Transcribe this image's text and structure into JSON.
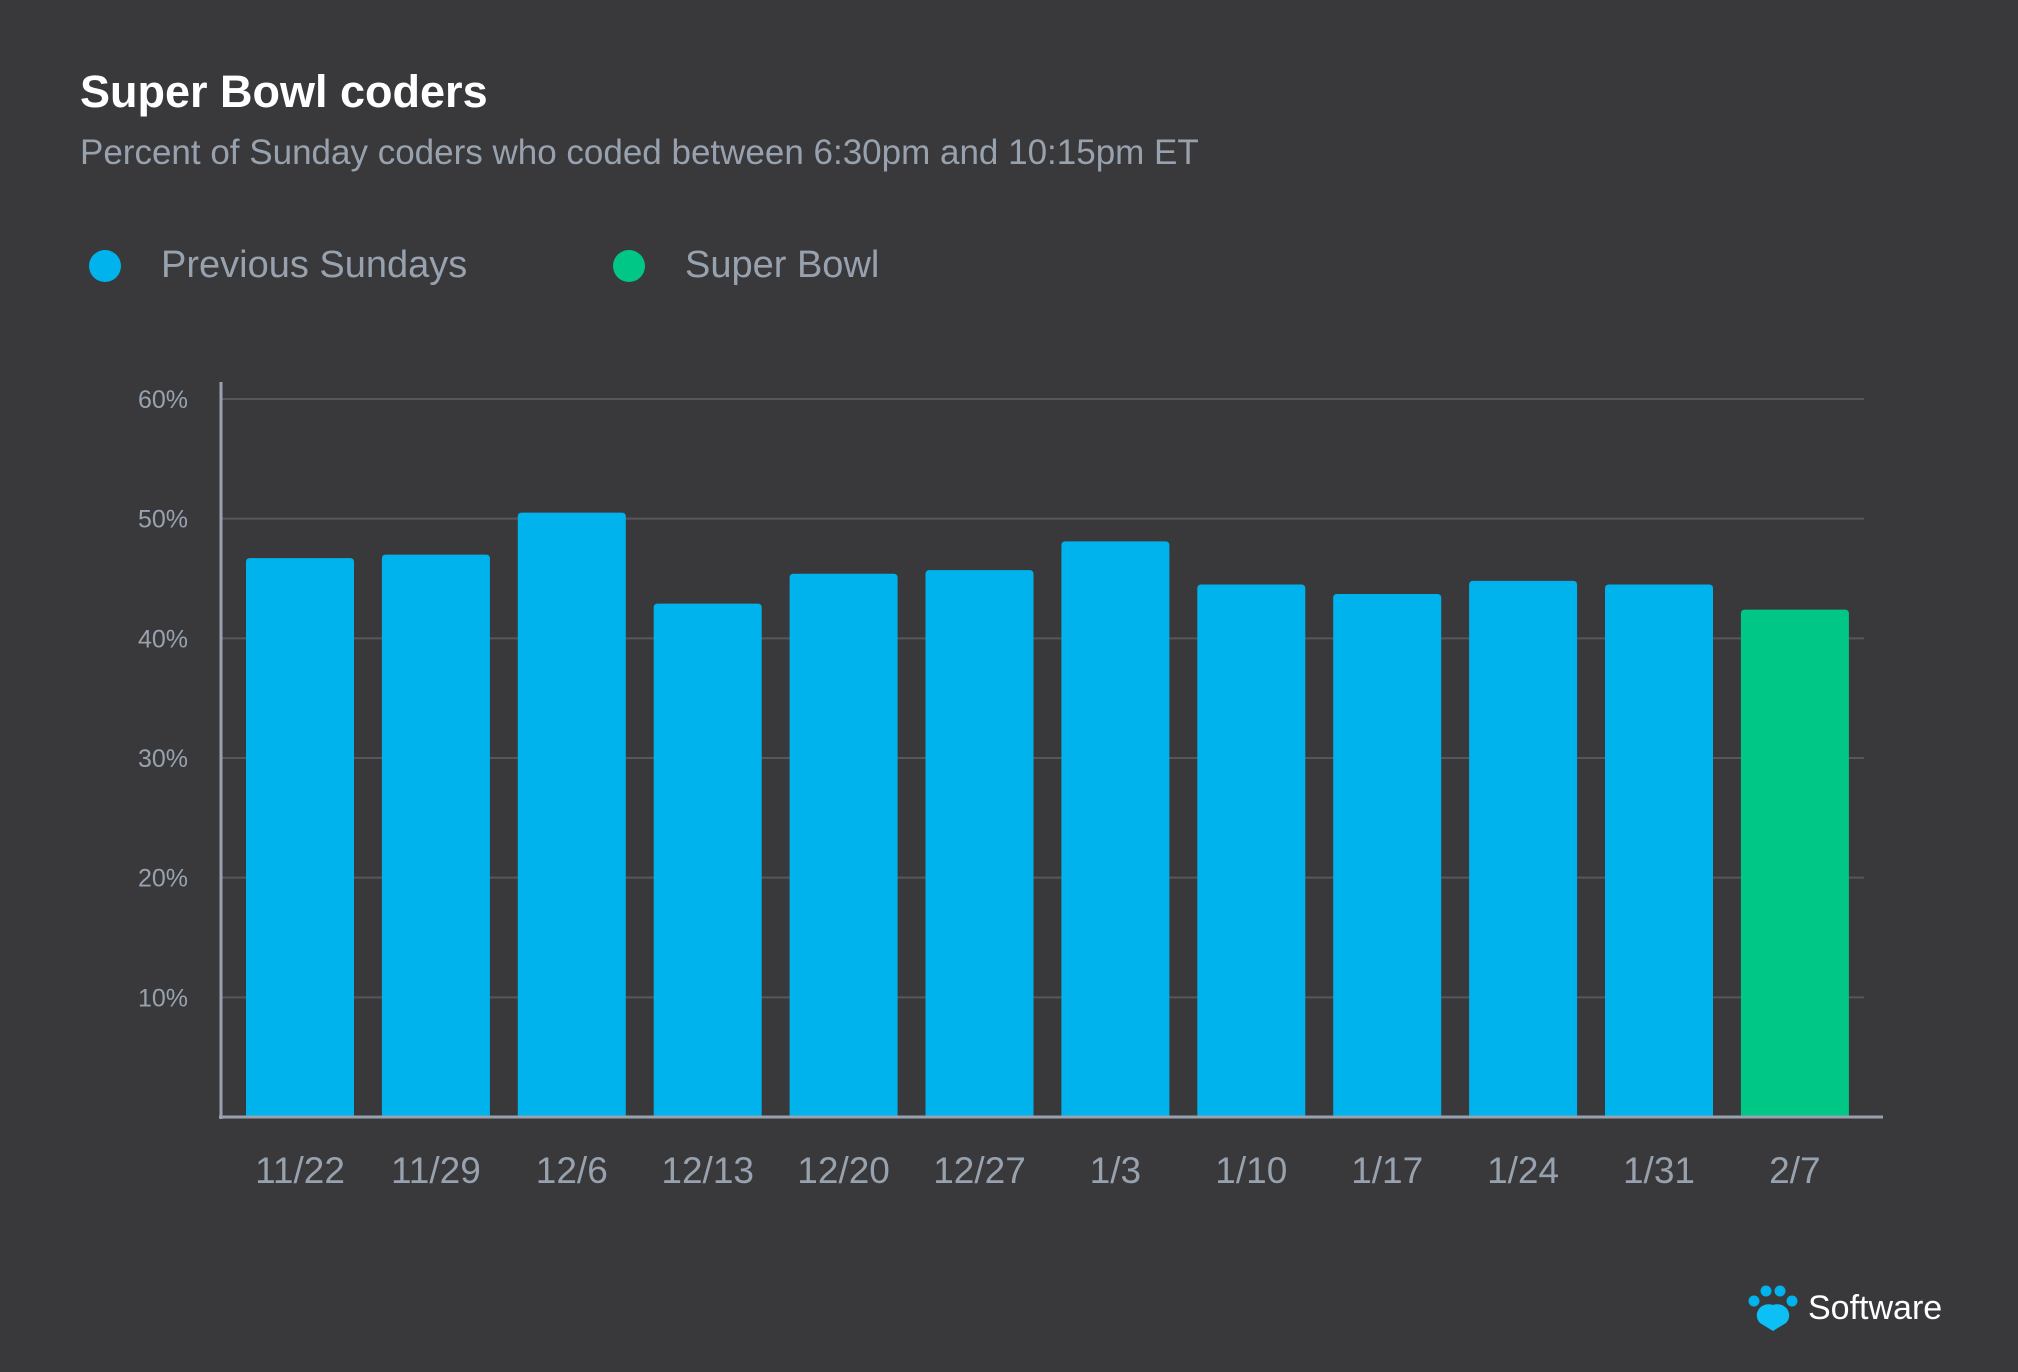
{
  "chart_data": {
    "type": "bar",
    "title": "Super Bowl coders",
    "subtitle": "Percent of Sunday coders who coded between 6:30pm and 10:15pm ET",
    "categories": [
      "11/22",
      "11/29",
      "12/6",
      "12/13",
      "12/20",
      "12/27",
      "1/3",
      "1/10",
      "1/17",
      "1/24",
      "1/31",
      "2/7"
    ],
    "values": [
      46.7,
      47.0,
      50.5,
      42.9,
      45.4,
      45.7,
      48.1,
      44.5,
      43.7,
      44.8,
      44.5,
      42.4
    ],
    "series_of_bar": [
      "Previous Sundays",
      "Previous Sundays",
      "Previous Sundays",
      "Previous Sundays",
      "Previous Sundays",
      "Previous Sundays",
      "Previous Sundays",
      "Previous Sundays",
      "Previous Sundays",
      "Previous Sundays",
      "Previous Sundays",
      "Super Bowl"
    ],
    "legend": [
      {
        "name": "Previous Sundays",
        "color": "#00b3ec"
      },
      {
        "name": "Super Bowl",
        "color": "#00c785"
      }
    ],
    "legend_placement": "top-left",
    "ylim": [
      0,
      60
    ],
    "yticks": [
      10,
      20,
      30,
      40,
      50,
      60
    ],
    "ytick_labels": [
      "10%",
      "20%",
      "30%",
      "40%",
      "50%",
      "60%"
    ],
    "grid": true
  },
  "logo": {
    "text": "Software",
    "color": "#00b3ec"
  }
}
